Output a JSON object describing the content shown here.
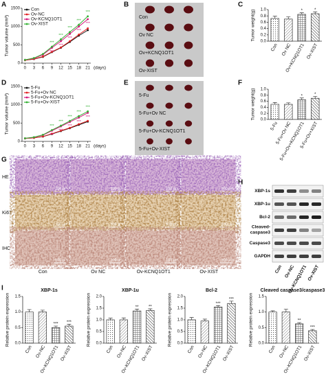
{
  "panel_letters": [
    "A",
    "B",
    "C",
    "D",
    "E",
    "F",
    "G",
    "H",
    "I"
  ],
  "chart_data": [
    {
      "type": "line",
      "ylabel": "Tumor volume (mm³)",
      "xlabel": "(days)",
      "x": [
        0,
        3,
        6,
        9,
        12,
        15,
        18,
        21
      ],
      "xlim": [
        -1,
        22
      ],
      "xticks": [
        0,
        3,
        6,
        9,
        12,
        15,
        18,
        21
      ],
      "ylim": [
        0,
        1500
      ],
      "yticks": [
        0,
        500,
        1000,
        1500
      ],
      "series": [
        {
          "name": "Con",
          "color": "#111111",
          "values": [
            80,
            110,
            170,
            300,
            420,
            580,
            750,
            900
          ]
        },
        {
          "name": "Ov-NC",
          "color": "#e02020",
          "values": [
            80,
            115,
            180,
            310,
            430,
            600,
            780,
            950
          ]
        },
        {
          "name": "Ov-KCNQ1OT1",
          "color": "#d4147a",
          "values": [
            90,
            130,
            230,
            420,
            600,
            800,
            1000,
            1200
          ],
          "sig": [
            null,
            null,
            null,
            "***",
            "***",
            "***",
            "***",
            "***"
          ]
        },
        {
          "name": "Ov-XIST",
          "color": "#33b033",
          "values": [
            90,
            140,
            250,
            450,
            650,
            850,
            1050,
            1280
          ],
          "sig": [
            null,
            null,
            null,
            "***",
            "***",
            "***",
            "***",
            "***"
          ]
        }
      ]
    },
    {
      "type": "bar",
      "ylabel": "Tumor weight(g)",
      "categories": [
        "Con",
        "Ov NC",
        "Ov+KCNQ1OT1",
        "Ov-XIST"
      ],
      "values": [
        0.72,
        0.7,
        0.85,
        0.87
      ],
      "errors": [
        0.07,
        0.07,
        0.05,
        0.06
      ],
      "sig": [
        null,
        null,
        "*",
        "*"
      ],
      "hatch": [
        "dots",
        "diag",
        "cross",
        "back"
      ],
      "ylim": [
        0,
        1
      ],
      "yticks": [
        {
          "value": 0,
          "label": "0.0"
        },
        0.2,
        0.4,
        0.6,
        0.8,
        {
          "value": 1,
          "label": "1.0"
        }
      ]
    },
    {
      "type": "line",
      "ylabel": "Tumor volume (mm³)",
      "xlabel": "(days)",
      "x": [
        0,
        3,
        6,
        9,
        12,
        15,
        18,
        21
      ],
      "xlim": [
        -1,
        22
      ],
      "xticks": [
        0,
        3,
        6,
        9,
        12,
        15,
        18,
        21
      ],
      "ylim": [
        0,
        1500
      ],
      "yticks": [
        0,
        500,
        1000,
        1500
      ],
      "series": [
        {
          "name": "5-Fu",
          "color": "#111111",
          "values": [
            80,
            95,
            130,
            200,
            280,
            360,
            450,
            540
          ]
        },
        {
          "name": "5-Fu+Ov NC",
          "color": "#e02020",
          "values": [
            80,
            95,
            135,
            210,
            290,
            370,
            470,
            560
          ]
        },
        {
          "name": "5-Fu+Ov-KCNQ1OT1",
          "color": "#d4147a",
          "values": [
            85,
            110,
            170,
            290,
            410,
            530,
            650,
            780
          ],
          "sig": [
            null,
            null,
            null,
            "***",
            "***",
            "***",
            "***",
            "***"
          ]
        },
        {
          "name": "5-Fu+Ov-XIST",
          "color": "#33b033",
          "values": [
            85,
            115,
            180,
            310,
            430,
            560,
            690,
            820
          ],
          "sig": [
            null,
            null,
            null,
            "***",
            "***",
            "***",
            "***",
            "***"
          ]
        }
      ]
    },
    {
      "type": "bar",
      "ylabel": "Tumor weight(g)",
      "categories": [
        "5-Fu",
        "5-Fu+Ov NC",
        "5-Fu+Ov+KCNQ1OT1",
        "5-Fu+Ov+XIST"
      ],
      "values": [
        0.5,
        0.5,
        0.65,
        0.7
      ],
      "errors": [
        0.06,
        0.05,
        0.06,
        0.06
      ],
      "sig": [
        null,
        null,
        "*",
        "*"
      ],
      "hatch": [
        "dots",
        "diag",
        "cross",
        "back"
      ],
      "ylim": [
        0,
        1
      ],
      "yticks": [
        {
          "value": 0,
          "label": "0.0"
        },
        0.2,
        0.4,
        0.6,
        0.8,
        {
          "value": 1,
          "label": "1.0"
        }
      ]
    },
    {
      "type": "bar",
      "title": "XBP-1s",
      "ylabel": "Relative protein expression",
      "categories": [
        "Con",
        "Ov-NC",
        "Ov-KCNQ1OT1",
        "Ov-XIST"
      ],
      "values": [
        1.0,
        1.0,
        0.5,
        0.55
      ],
      "errors": [
        0.08,
        0.06,
        0.05,
        0.06
      ],
      "sig": [
        null,
        null,
        "***",
        "***"
      ],
      "hatch": [
        "dots",
        "diag",
        "cross",
        "back"
      ],
      "ylim": [
        0,
        1.5
      ],
      "yticks": [
        {
          "value": 0,
          "label": "0.0"
        },
        0.5,
        {
          "value": 1,
          "label": "1.0"
        },
        1.5
      ]
    },
    {
      "type": "bar",
      "title": "XBP-1u",
      "ylabel": "Relative protein expression",
      "categories": [
        "Con",
        "Ov-NC",
        "Ov-KCNQ1OT1",
        "Ov-XIST"
      ],
      "values": [
        1.0,
        1.0,
        1.38,
        1.4
      ],
      "errors": [
        0.07,
        0.08,
        0.08,
        0.07
      ],
      "sig": [
        null,
        null,
        "**",
        "**"
      ],
      "hatch": [
        "dots",
        "diag",
        "cross",
        "back"
      ],
      "ylim": [
        0,
        2
      ],
      "yticks": [
        {
          "value": 0,
          "label": "0.0"
        },
        0.5,
        {
          "value": 1,
          "label": "1.0"
        },
        1.5,
        {
          "value": 2,
          "label": "2.0"
        }
      ]
    },
    {
      "type": "bar",
      "title": "Bcl-2",
      "ylabel": "Relative protein expression",
      "categories": [
        "Con",
        "Ov-NC",
        "Ov-KCNQ1OT1",
        "Ov-XIST"
      ],
      "values": [
        1.0,
        0.95,
        1.55,
        1.7
      ],
      "errors": [
        0.1,
        0.08,
        0.06,
        0.1
      ],
      "sig": [
        null,
        null,
        "***",
        "***"
      ],
      "hatch": [
        "dots",
        "diag",
        "cross",
        "back"
      ],
      "ylim": [
        0,
        2
      ],
      "yticks": [
        {
          "value": 0,
          "label": "0.0"
        },
        0.5,
        {
          "value": 1,
          "label": "1.0"
        },
        1.5,
        {
          "value": 2,
          "label": "2.0"
        }
      ]
    },
    {
      "type": "bar",
      "title": "Cleaved caspase3/caspase3",
      "ylabel": "Relative protein expression",
      "categories": [
        "Con",
        "Ov-NC",
        "Ov-KCNQ1OT1",
        "Ov-XIST"
      ],
      "values": [
        1.0,
        1.0,
        0.62,
        0.4
      ],
      "errors": [
        0.04,
        0.09,
        0.04,
        0.04
      ],
      "sig": [
        null,
        null,
        "**",
        "***"
      ],
      "hatch": [
        "dots",
        "diag",
        "cross",
        "back"
      ],
      "ylim": [
        0,
        1.5
      ],
      "yticks": [
        {
          "value": 0,
          "label": "0.0"
        },
        0.5,
        {
          "value": 1,
          "label": "1.0"
        },
        1.5
      ]
    }
  ],
  "photos": {
    "B": [
      "Con",
      "Ov NC",
      "Ov+KCNQ1OT1",
      "Ov-XIST"
    ],
    "E": [
      "5-Fu",
      "5-Fu+Ov NC",
      "5-Fu+Ov-KCNQ1OT1",
      "5-Fu+Ov-XIST"
    ]
  },
  "histology": {
    "rows": [
      "HE",
      "Ki67",
      "IHC"
    ],
    "columns": [
      "Con",
      "Ov NC",
      "Ov-KCNQ1OT1",
      "Ov-XIST"
    ],
    "scale": "100 μm"
  },
  "western_blot": {
    "rows": [
      "XBP-1s",
      "XBP-1u",
      "Bcl-2",
      [
        "Cleaved-",
        "caspase3"
      ],
      "Caspase3",
      "GAPDH"
    ],
    "columns": [
      "Con",
      "Ov-NC",
      "Ov-KCNQ1OT1",
      "Ov-XIST"
    ]
  }
}
